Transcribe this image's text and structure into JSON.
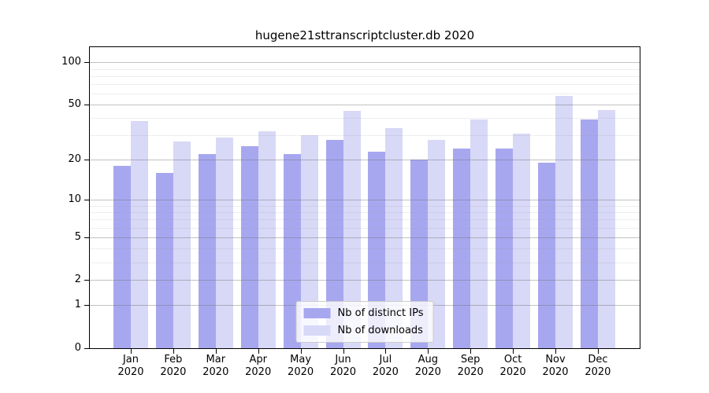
{
  "chart_data": {
    "type": "bar",
    "title": "hugene21sttranscriptcluster.db 2020",
    "categories": [
      "Jan",
      "Feb",
      "Mar",
      "Apr",
      "May",
      "Jun",
      "Jul",
      "Aug",
      "Sep",
      "Oct",
      "Nov",
      "Dec"
    ],
    "x_tick_year": "2020",
    "series": [
      {
        "name": "Nb of distinct IPs",
        "color": "#a7a7f0",
        "values": [
          18,
          16,
          22,
          25,
          22,
          28,
          23,
          20,
          24,
          24,
          19,
          39
        ]
      },
      {
        "name": "Nb of downloads",
        "color": "#d8d8f7",
        "values": [
          38,
          27,
          29,
          32,
          30,
          45,
          34,
          28,
          39,
          31,
          58,
          46
        ]
      }
    ],
    "y_axis": {
      "scale": "log1p",
      "max": 128,
      "ticks": [
        100,
        50,
        20,
        10,
        5,
        2,
        1,
        0
      ],
      "major_gridlines": [
        1,
        2,
        5,
        10,
        20,
        50,
        100
      ],
      "minor_gridlines": [
        3,
        4,
        6,
        7,
        8,
        9,
        30,
        40,
        60,
        70,
        80,
        90
      ]
    },
    "xlabel": "",
    "ylabel": "",
    "grid": true,
    "legend_position": "lower center"
  },
  "colors": {
    "bar_distinct_ips": "#a7a7f0",
    "bar_downloads": "#d8d8f7",
    "axis": "#000000",
    "background": "#ffffff",
    "legend_border": "#cccccc"
  }
}
